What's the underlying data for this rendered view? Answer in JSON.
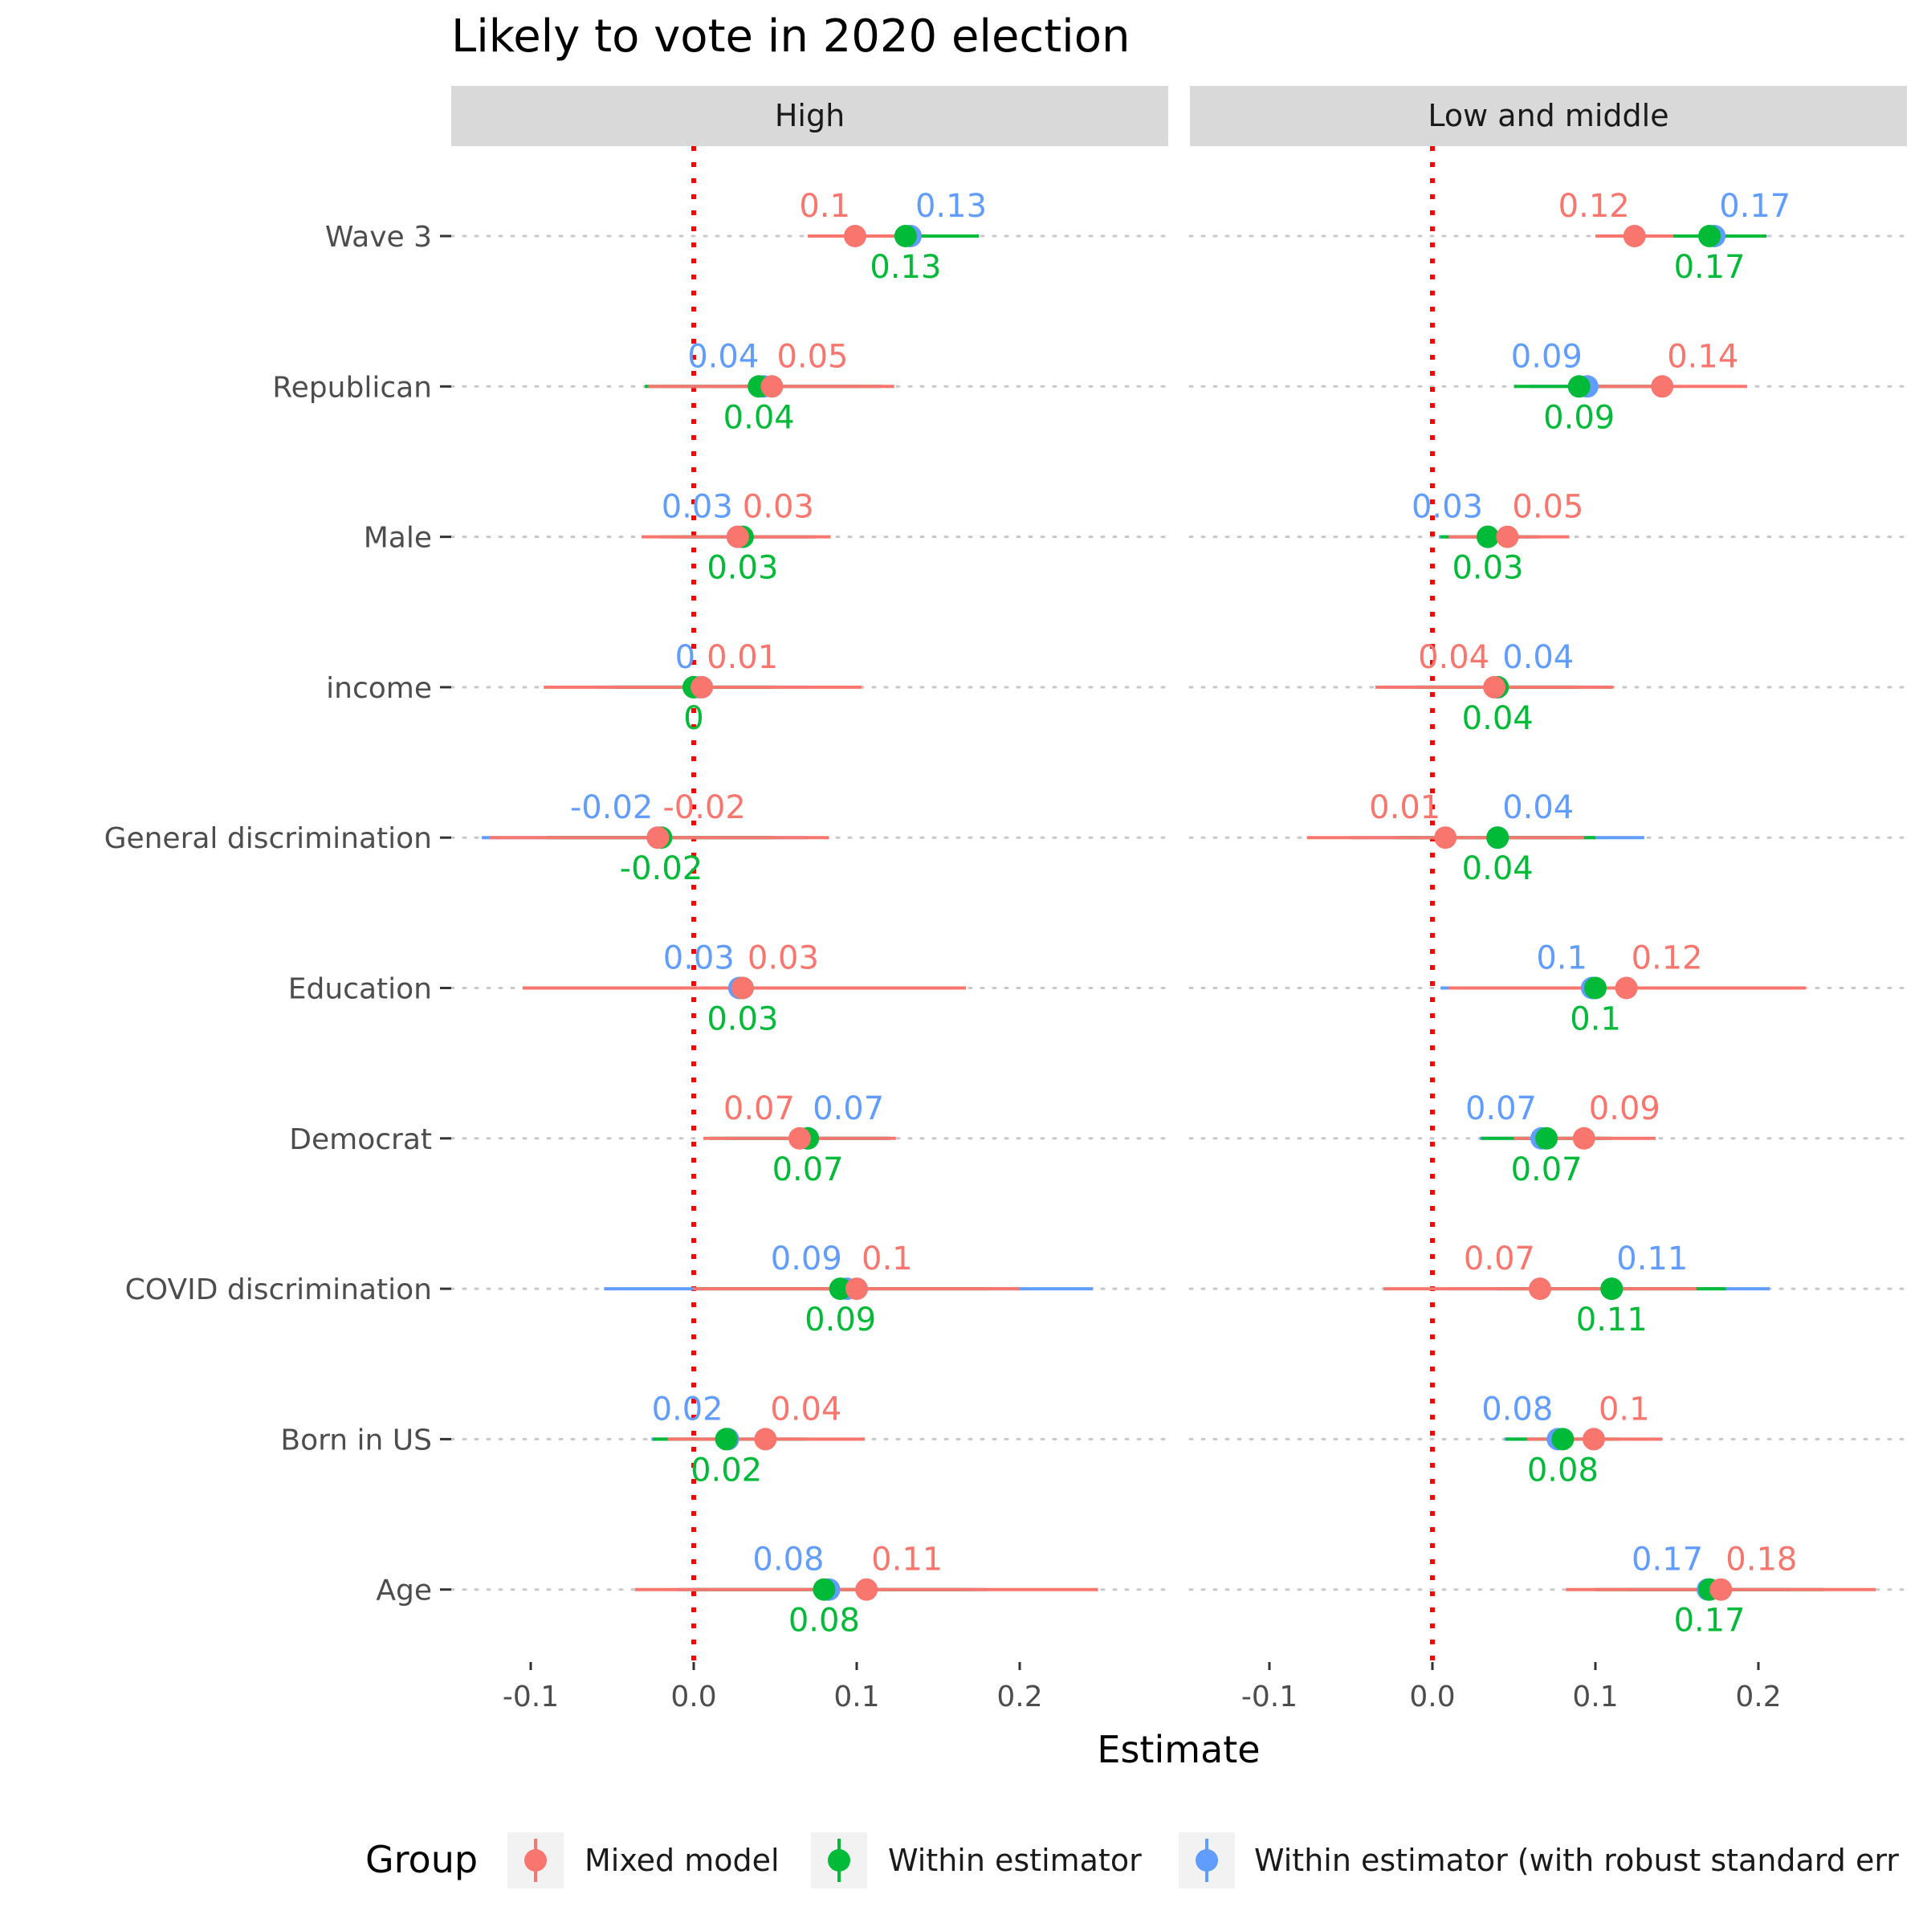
{
  "chart_data": {
    "type": "coefficient-plot",
    "title": "Likely to vote in 2020 election",
    "xlabel": "Estimate",
    "xlim": [
      -0.15,
      0.275
    ],
    "x_ticks": [
      -0.1,
      0.0,
      0.1,
      0.2
    ],
    "x_tick_labels": [
      "-0.1",
      "0.0",
      "0.1",
      "0.2"
    ],
    "reference_line": 0,
    "categories": [
      "Wave 3",
      "Republican",
      "Male",
      "income",
      "General discrimination",
      "Education",
      "Democrat",
      "COVID discrimination",
      "Born in US",
      "Age"
    ],
    "legend": {
      "title": "Group",
      "position": "bottom",
      "entries": [
        "Mixed model",
        "Within estimator",
        "Within estimator (with robust standard err"
      ]
    },
    "colors": {
      "Mixed model": "#F8766D",
      "Within estimator": "#00BA38",
      "Within estimator (with robust standard errors)": "#619CFF",
      "reference_line": "#FF0000",
      "strip_bg": "#D9D9D9",
      "row_dots": "#C8C8C8"
    },
    "panels": [
      {
        "name": "High",
        "series": [
          {
            "name": "Within estimator",
            "points": [
              {
                "term": "Wave 3",
                "estimate": 0.13,
                "low": 0.078,
                "high": 0.175,
                "label": "0.13"
              },
              {
                "term": "Republican",
                "estimate": 0.04,
                "low": -0.03,
                "high": 0.115,
                "label": "0.04"
              },
              {
                "term": "Male",
                "estimate": 0.03,
                "low": -0.02,
                "high": 0.075,
                "label": "0.03"
              },
              {
                "term": "income",
                "estimate": 0.0,
                "low": -0.05,
                "high": 0.05,
                "label": "0"
              },
              {
                "term": "General discrimination",
                "estimate": -0.02,
                "low": -0.09,
                "high": 0.05,
                "label": "-0.02"
              },
              {
                "term": "Education",
                "estimate": 0.03,
                "low": -0.03,
                "high": 0.09,
                "label": "0.03"
              },
              {
                "term": "Democrat",
                "estimate": 0.07,
                "low": 0.01,
                "high": 0.12,
                "label": "0.07"
              },
              {
                "term": "COVID discrimination",
                "estimate": 0.09,
                "low": 0.0,
                "high": 0.18,
                "label": "0.09"
              },
              {
                "term": "Born in US",
                "estimate": 0.02,
                "low": -0.025,
                "high": 0.07,
                "label": "0.02"
              },
              {
                "term": "Age",
                "estimate": 0.08,
                "low": 0.0,
                "high": 0.17,
                "label": "0.08"
              }
            ]
          },
          {
            "name": "Within estimator (with robust standard errors)",
            "points": [
              {
                "term": "Wave 3",
                "estimate": 0.133,
                "low": 0.09,
                "high": 0.175,
                "label": "0.13"
              },
              {
                "term": "Republican",
                "estimate": 0.043,
                "low": -0.02,
                "high": 0.1,
                "label": "0.04"
              },
              {
                "term": "Male",
                "estimate": 0.027,
                "low": -0.01,
                "high": 0.07,
                "label": "0.03"
              },
              {
                "term": "income",
                "estimate": 0.004,
                "low": -0.06,
                "high": 0.07,
                "label": "0"
              },
              {
                "term": "General discrimination",
                "estimate": -0.022,
                "low": -0.13,
                "high": 0.07,
                "label": "-0.02"
              },
              {
                "term": "Education",
                "estimate": 0.028,
                "low": -0.09,
                "high": 0.15,
                "label": "0.03"
              },
              {
                "term": "Democrat",
                "estimate": 0.07,
                "low": 0.02,
                "high": 0.12,
                "label": "0.07"
              },
              {
                "term": "COVID discrimination",
                "estimate": 0.094,
                "low": -0.055,
                "high": 0.245,
                "label": "0.09"
              },
              {
                "term": "Born in US",
                "estimate": 0.021,
                "low": -0.026,
                "high": 0.068,
                "label": "0.02"
              },
              {
                "term": "Age",
                "estimate": 0.083,
                "low": -0.01,
                "high": 0.18,
                "label": "0.08"
              }
            ]
          },
          {
            "name": "Mixed model",
            "points": [
              {
                "term": "Wave 3",
                "estimate": 0.099,
                "low": 0.07,
                "high": 0.128,
                "label": "0.1"
              },
              {
                "term": "Republican",
                "estimate": 0.048,
                "low": -0.028,
                "high": 0.123,
                "label": "0.05"
              },
              {
                "term": "Male",
                "estimate": 0.027,
                "low": -0.032,
                "high": 0.084,
                "label": "0.03"
              },
              {
                "term": "income",
                "estimate": 0.005,
                "low": -0.092,
                "high": 0.103,
                "label": "0.01"
              },
              {
                "term": "General discrimination",
                "estimate": -0.022,
                "low": -0.125,
                "high": 0.083,
                "label": "-0.02"
              },
              {
                "term": "Education",
                "estimate": 0.03,
                "low": -0.105,
                "high": 0.167,
                "label": "0.03"
              },
              {
                "term": "Democrat",
                "estimate": 0.065,
                "low": 0.006,
                "high": 0.124,
                "label": "0.07"
              },
              {
                "term": "COVID discrimination",
                "estimate": 0.1,
                "low": 0.0,
                "high": 0.2,
                "label": "0.1"
              },
              {
                "term": "Born in US",
                "estimate": 0.044,
                "low": -0.016,
                "high": 0.105,
                "label": "0.04"
              },
              {
                "term": "Age",
                "estimate": 0.106,
                "low": -0.036,
                "high": 0.248,
                "label": "0.11"
              }
            ]
          }
        ]
      },
      {
        "name": "Low and middle",
        "series": [
          {
            "name": "Within estimator",
            "points": [
              {
                "term": "Wave 3",
                "estimate": 0.17,
                "low": 0.13,
                "high": 0.205,
                "label": "0.17"
              },
              {
                "term": "Republican",
                "estimate": 0.09,
                "low": 0.05,
                "high": 0.135,
                "label": "0.09"
              },
              {
                "term": "Male",
                "estimate": 0.034,
                "low": 0.005,
                "high": 0.065,
                "label": "0.03"
              },
              {
                "term": "income",
                "estimate": 0.04,
                "low": -0.01,
                "high": 0.09,
                "label": "0.04"
              },
              {
                "term": "General discrimination",
                "estimate": 0.04,
                "low": -0.02,
                "high": 0.1,
                "label": "0.04"
              },
              {
                "term": "Education",
                "estimate": 0.1,
                "low": 0.03,
                "high": 0.17,
                "label": "0.1"
              },
              {
                "term": "Democrat",
                "estimate": 0.07,
                "low": 0.03,
                "high": 0.11,
                "label": "0.07"
              },
              {
                "term": "COVID discrimination",
                "estimate": 0.11,
                "low": 0.04,
                "high": 0.18,
                "label": "0.11"
              },
              {
                "term": "Born in US",
                "estimate": 0.08,
                "low": 0.045,
                "high": 0.115,
                "label": "0.08"
              },
              {
                "term": "Age",
                "estimate": 0.17,
                "low": 0.1,
                "high": 0.24,
                "label": "0.17"
              }
            ]
          },
          {
            "name": "Within estimator (with robust standard errors)",
            "points": [
              {
                "term": "Wave 3",
                "estimate": 0.173,
                "low": 0.14,
                "high": 0.205,
                "label": "0.17"
              },
              {
                "term": "Republican",
                "estimate": 0.095,
                "low": 0.06,
                "high": 0.13,
                "label": "0.09"
              },
              {
                "term": "Male",
                "estimate": 0.034,
                "low": 0.004,
                "high": 0.064,
                "label": "0.03"
              },
              {
                "term": "income",
                "estimate": 0.04,
                "low": -0.03,
                "high": 0.11,
                "label": "0.04"
              },
              {
                "term": "General discrimination",
                "estimate": 0.04,
                "low": -0.05,
                "high": 0.13,
                "label": "0.04"
              },
              {
                "term": "Education",
                "estimate": 0.098,
                "low": 0.005,
                "high": 0.19,
                "label": "0.1"
              },
              {
                "term": "Democrat",
                "estimate": 0.067,
                "low": 0.029,
                "high": 0.105,
                "label": "0.07"
              },
              {
                "term": "COVID discrimination",
                "estimate": 0.11,
                "low": 0.01,
                "high": 0.207,
                "label": "0.11"
              },
              {
                "term": "Born in US",
                "estimate": 0.077,
                "low": 0.044,
                "high": 0.11,
                "label": "0.08"
              },
              {
                "term": "Age",
                "estimate": 0.169,
                "low": 0.12,
                "high": 0.22,
                "label": "0.17"
              }
            ]
          },
          {
            "name": "Mixed model",
            "points": [
              {
                "term": "Wave 3",
                "estimate": 0.124,
                "low": 0.1,
                "high": 0.148,
                "label": "0.12"
              },
              {
                "term": "Republican",
                "estimate": 0.141,
                "low": 0.09,
                "high": 0.193,
                "label": "0.14"
              },
              {
                "term": "Male",
                "estimate": 0.046,
                "low": 0.01,
                "high": 0.084,
                "label": "0.05"
              },
              {
                "term": "income",
                "estimate": 0.038,
                "low": -0.035,
                "high": 0.111,
                "label": "0.04"
              },
              {
                "term": "General discrimination",
                "estimate": 0.008,
                "low": -0.077,
                "high": 0.093,
                "label": "0.01"
              },
              {
                "term": "Education",
                "estimate": 0.119,
                "low": 0.01,
                "high": 0.229,
                "label": "0.12"
              },
              {
                "term": "Democrat",
                "estimate": 0.093,
                "low": 0.05,
                "high": 0.137,
                "label": "0.09"
              },
              {
                "term": "COVID discrimination",
                "estimate": 0.066,
                "low": -0.03,
                "high": 0.162,
                "label": "0.07"
              },
              {
                "term": "Born in US",
                "estimate": 0.099,
                "low": 0.058,
                "high": 0.141,
                "label": "0.1"
              },
              {
                "term": "Age",
                "estimate": 0.177,
                "low": 0.082,
                "high": 0.272,
                "label": "0.18"
              }
            ]
          }
        ]
      }
    ]
  }
}
